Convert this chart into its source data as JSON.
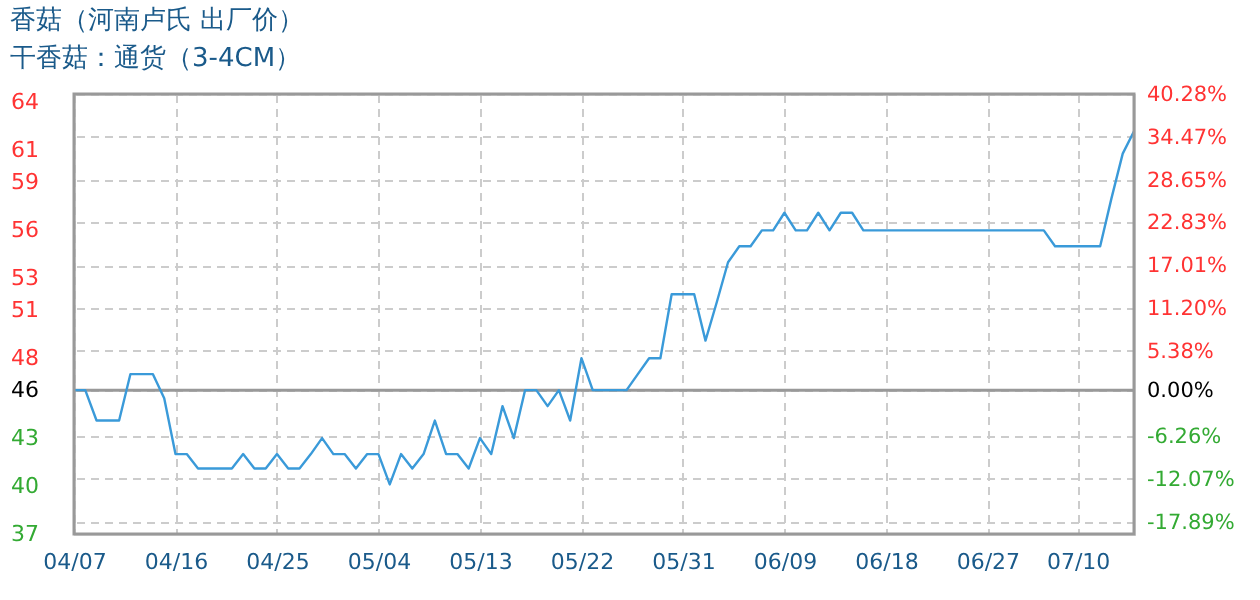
{
  "chart_data": {
    "type": "line",
    "title": "香菇（河南卢氏 出厂价）",
    "subtitle": "干香菇：通货（3-4CM）",
    "categories": [
      "04/07",
      null,
      null,
      null,
      null,
      null,
      null,
      null,
      null,
      "04/16",
      null,
      null,
      null,
      null,
      null,
      null,
      null,
      null,
      "04/25",
      null,
      null,
      null,
      null,
      null,
      null,
      null,
      null,
      "05/04",
      null,
      null,
      null,
      null,
      null,
      null,
      null,
      null,
      "05/13",
      null,
      null,
      null,
      null,
      null,
      null,
      null,
      null,
      "05/22",
      null,
      null,
      null,
      null,
      null,
      null,
      null,
      null,
      "05/31",
      null,
      null,
      null,
      null,
      null,
      null,
      null,
      null,
      "06/09",
      null,
      null,
      null,
      null,
      null,
      null,
      null,
      null,
      "06/18",
      null,
      null,
      null,
      null,
      null,
      null,
      null,
      null,
      "06/27",
      null,
      null,
      null,
      null,
      null,
      null,
      null,
      "07/10",
      null,
      null,
      null,
      null,
      null
    ],
    "series": [
      {
        "color": "#3a9ad9",
        "values": [
          46,
          46,
          44.1,
          44.1,
          44.1,
          47.0,
          47.0,
          47.0,
          45.5,
          42.0,
          42.0,
          41.1,
          41.1,
          41.1,
          41.1,
          42.0,
          41.1,
          41.1,
          42.0,
          41.1,
          41.1,
          42.0,
          43.0,
          42.0,
          42.0,
          41.1,
          42.0,
          42.0,
          40.1,
          42.0,
          41.1,
          42.0,
          44.1,
          42.0,
          42.0,
          41.1,
          43.0,
          42.0,
          45.0,
          43.0,
          46,
          46,
          45.0,
          46,
          44.1,
          48.0,
          46,
          46,
          46,
          46,
          47.0,
          48.0,
          48.0,
          52.0,
          52.0,
          52.0,
          49.1,
          51.5,
          54.0,
          55.0,
          55.0,
          56.0,
          56.0,
          57.1,
          56.0,
          56.0,
          57.1,
          56.0,
          57.1,
          57.1,
          56.0,
          56.0,
          56.0,
          56.0,
          56.0,
          56.0,
          56.0,
          56.0,
          56.0,
          56.0,
          56.0,
          56.0,
          56.0,
          56.0,
          56.0,
          56.0,
          56.0,
          55.0,
          55.0,
          55.0,
          55.0,
          55.0,
          58.0,
          60.8,
          62.2
        ]
      }
    ],
    "ylim": [
      37,
      64.53
    ],
    "yticks": [
      37,
      40,
      43,
      46,
      48,
      51,
      53,
      56,
      59,
      61,
      64
    ],
    "y2lim": [
      -19.57,
      40.28
    ],
    "y2ticks": [
      {
        "value": -17.89,
        "label": "-17.89%"
      },
      {
        "value": -12.07,
        "label": "-12.07%"
      },
      {
        "value": -6.26,
        "label": "-6.26%"
      },
      {
        "value": 0,
        "label": "0.00%"
      },
      {
        "value": 5.38,
        "label": "5.38%"
      },
      {
        "value": 11.2,
        "label": "11.20%"
      },
      {
        "value": 17.01,
        "label": "17.01%"
      },
      {
        "value": 22.83,
        "label": "22.83%"
      },
      {
        "value": 28.65,
        "label": "28.65%"
      },
      {
        "value": 34.47,
        "label": "34.47%"
      },
      {
        "value": 40.28,
        "label": "40.28%"
      }
    ],
    "ref_lines": [
      {
        "axis": "y2",
        "value": 0,
        "color": "#999999"
      }
    ],
    "grid": true,
    "line_style": "solid"
  }
}
